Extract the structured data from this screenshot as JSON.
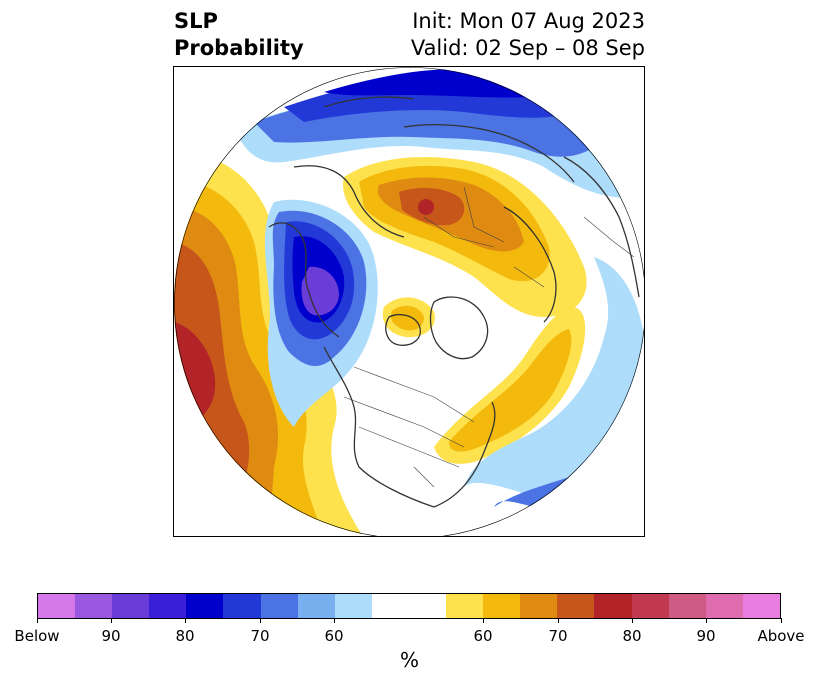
{
  "title": {
    "left_line1": "SLP",
    "left_line2": "Probability",
    "right_line1": "Init: Mon 07 Aug 2023",
    "right_line2": "Valid: 02 Sep – 08 Sep"
  },
  "colorbar": {
    "colors": [
      "#d477e8",
      "#9a57e0",
      "#6a3cd8",
      "#3b1fd8",
      "#0000cc",
      "#2239d8",
      "#4b73e4",
      "#78b0ef",
      "#aedcfb",
      "#ffffff",
      "#ffffff",
      "#fde24d",
      "#f3b90d",
      "#df8b12",
      "#c6561a",
      "#b22428",
      "#c13a50",
      "#cf5a84",
      "#e06cb0",
      "#ea7de0"
    ],
    "tick_labels": [
      "Below",
      "90",
      "80",
      "70",
      "60",
      "60",
      "70",
      "80",
      "90",
      "Above"
    ],
    "units_label": "%"
  },
  "map": {
    "projection": "north polar stereographic",
    "legend_colors": {
      "below": "#4b73e4",
      "above": "#df8b12"
    }
  }
}
